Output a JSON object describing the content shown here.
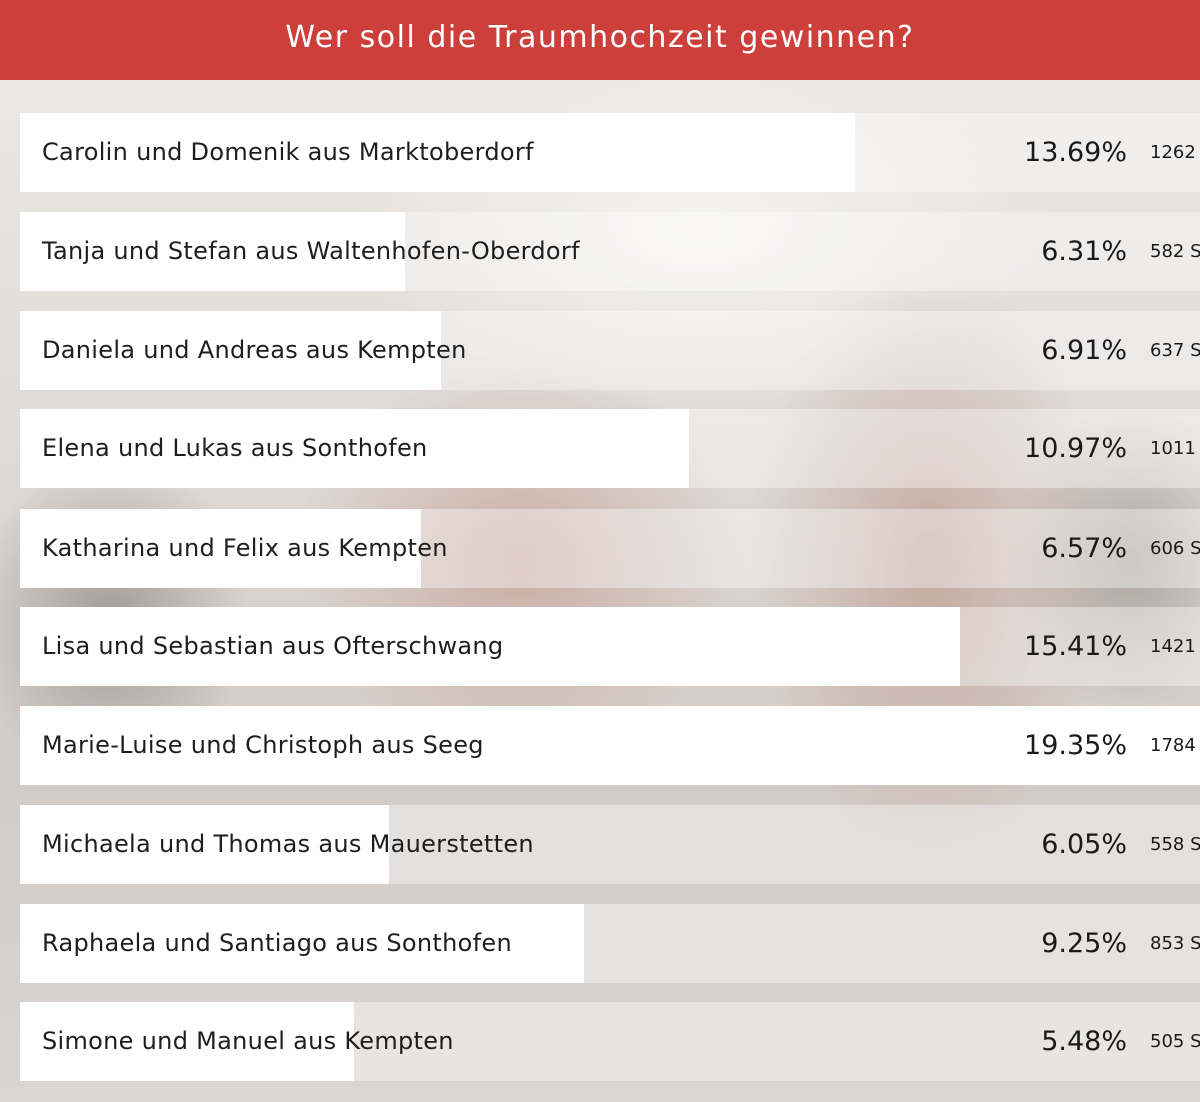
{
  "poll": {
    "title": "Wer soll die Traumhochzeit gewinnen?",
    "colors": {
      "header": "#cc3f3a",
      "bar": "#ffffff"
    },
    "options": [
      {
        "label": "Carolin und Domenik aus Marktoberdorf",
        "percent": "13.69%",
        "share": 0.1369,
        "votes": "1262 S"
      },
      {
        "label": "Tanja und Stefan aus Waltenhofen-Oberdorf",
        "percent": "6.31%",
        "share": 0.0631,
        "votes": "582 S"
      },
      {
        "label": "Daniela und Andreas aus Kempten",
        "percent": "6.91%",
        "share": 0.0691,
        "votes": "637 S"
      },
      {
        "label": "Elena und Lukas aus Sonthofen",
        "percent": "10.97%",
        "share": 0.1097,
        "votes": "1011 S"
      },
      {
        "label": "Katharina und Felix aus Kempten",
        "percent": "6.57%",
        "share": 0.0657,
        "votes": "606 S"
      },
      {
        "label": "Lisa und Sebastian aus Ofterschwang",
        "percent": "15.41%",
        "share": 0.1541,
        "votes": "1421 S"
      },
      {
        "label": "Marie-Luise und Christoph aus Seeg",
        "percent": "19.35%",
        "share": 0.1935,
        "votes": "1784 S"
      },
      {
        "label": "Michaela und Thomas aus Mauerstetten",
        "percent": "6.05%",
        "share": 0.0605,
        "votes": "558 S"
      },
      {
        "label": "Raphaela und Santiago aus Sonthofen",
        "percent": "9.25%",
        "share": 0.0925,
        "votes": "853 S"
      },
      {
        "label": "Simone und Manuel aus Kempten",
        "percent": "5.48%",
        "share": 0.0548,
        "votes": "505 S"
      }
    ]
  }
}
